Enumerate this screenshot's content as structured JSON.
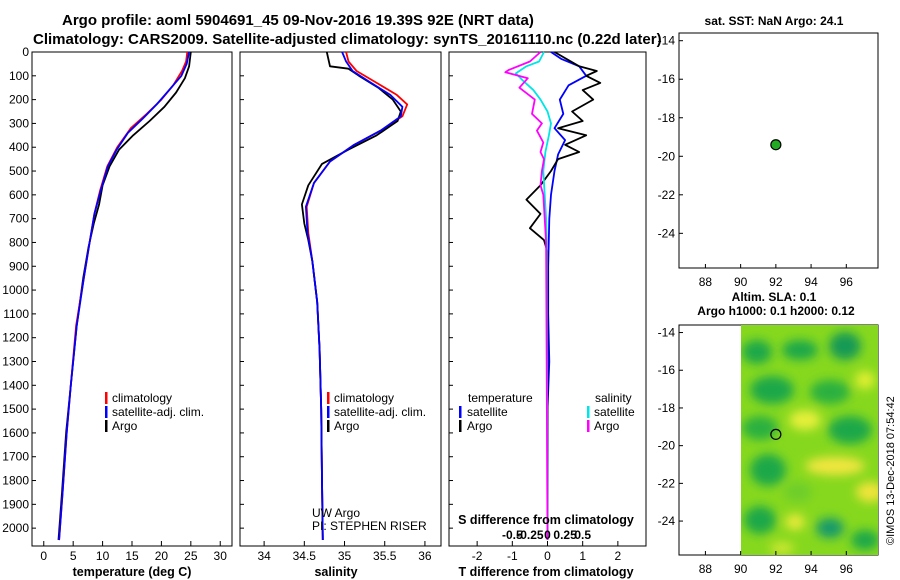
{
  "title": {
    "line1": "Argo profile: aoml 5904691_45 09-Nov-2016 19.39S 92E (NRT data)",
    "line2": "Climatology: CARS2009. Satellite-adjusted climatology: synTS_20161110.nc (0.22d later)"
  },
  "colors": {
    "climatology": "#ff0000",
    "satellite": "#0000ff",
    "argo": "#000000",
    "sat_salinity": "#00e5e5",
    "argo_salinity": "#ff00ff"
  },
  "depth_ticks": [
    "0",
    "100",
    "200",
    "300",
    "400",
    "500",
    "600",
    "700",
    "800",
    "900",
    "1000",
    "1100",
    "1200",
    "1300",
    "1400",
    "1500",
    "1600",
    "1700",
    "1800",
    "1900",
    "2000"
  ],
  "chart_data": [
    {
      "type": "line",
      "xlabel": "temperature (deg C)",
      "xlim": [
        -2,
        32
      ],
      "ylim": [
        0,
        2075
      ],
      "xticks": [
        "0",
        "5",
        "10",
        "15",
        "20",
        "25",
        "30"
      ],
      "legend": [
        "climatology",
        "satellite-adj. clim.",
        "Argo"
      ],
      "series": [
        {
          "name": "climatology",
          "points": [
            [
              24.4,
              0
            ],
            [
              24.2,
              40
            ],
            [
              23.5,
              80
            ],
            [
              22.0,
              140
            ],
            [
              20.0,
              200
            ],
            [
              17.5,
              260
            ],
            [
              14.8,
              320
            ],
            [
              12.5,
              400
            ],
            [
              10.8,
              480
            ],
            [
              9.6,
              580
            ],
            [
              8.6,
              680
            ],
            [
              7.8,
              800
            ],
            [
              6.8,
              950
            ],
            [
              5.5,
              1150
            ],
            [
              4.6,
              1400
            ],
            [
              3.9,
              1600
            ],
            [
              3.2,
              1850
            ],
            [
              2.6,
              2050
            ]
          ]
        },
        {
          "name": "satellite-adj. clim.",
          "points": [
            [
              24.7,
              0
            ],
            [
              24.3,
              50
            ],
            [
              23.4,
              100
            ],
            [
              21.3,
              160
            ],
            [
              19.2,
              220
            ],
            [
              16.8,
              280
            ],
            [
              14.3,
              340
            ],
            [
              12.4,
              410
            ],
            [
              10.9,
              480
            ],
            [
              9.7,
              580
            ],
            [
              8.6,
              680
            ],
            [
              7.8,
              800
            ],
            [
              6.8,
              950
            ],
            [
              5.6,
              1150
            ],
            [
              4.6,
              1400
            ],
            [
              3.9,
              1600
            ],
            [
              3.2,
              1850
            ],
            [
              2.6,
              2050
            ]
          ]
        },
        {
          "name": "Argo",
          "points": [
            [
              25.0,
              0
            ],
            [
              24.7,
              60
            ],
            [
              24.0,
              110
            ],
            [
              22.5,
              170
            ],
            [
              20.5,
              230
            ],
            [
              18.0,
              290
            ],
            [
              15.2,
              350
            ],
            [
              12.8,
              410
            ],
            [
              11.2,
              480
            ],
            [
              10.0,
              560
            ],
            [
              9.4,
              640
            ],
            [
              8.5,
              720
            ],
            [
              7.6,
              820
            ],
            [
              6.7,
              950
            ],
            [
              5.6,
              1150
            ],
            [
              4.6,
              1400
            ],
            [
              3.8,
              1600
            ],
            [
              3.1,
              1850
            ],
            [
              2.5,
              2050
            ]
          ]
        }
      ]
    },
    {
      "type": "line",
      "xlabel": "salinity",
      "xlim": [
        33.7,
        36.2
      ],
      "ylim": [
        0,
        2075
      ],
      "xticks": [
        "34",
        "34.5",
        "35",
        "35.5",
        "36"
      ],
      "legend": [
        "climatology",
        "satellite-adj. clim.",
        "Argo"
      ],
      "notes": [
        "UW Argo",
        "PI: STEPHEN RISER"
      ],
      "series": [
        {
          "name": "climatology",
          "points": [
            [
              35.02,
              0
            ],
            [
              35.05,
              40
            ],
            [
              35.15,
              80
            ],
            [
              35.4,
              130
            ],
            [
              35.65,
              180
            ],
            [
              35.78,
              220
            ],
            [
              35.72,
              270
            ],
            [
              35.45,
              330
            ],
            [
              35.12,
              390
            ],
            [
              34.82,
              460
            ],
            [
              34.62,
              550
            ],
            [
              34.53,
              650
            ],
            [
              34.55,
              760
            ],
            [
              34.6,
              880
            ],
            [
              34.66,
              1050
            ],
            [
              34.69,
              1250
            ],
            [
              34.71,
              1500
            ],
            [
              34.72,
              1800
            ],
            [
              34.73,
              2050
            ]
          ]
        },
        {
          "name": "satellite-adj. clim.",
          "points": [
            [
              34.97,
              0
            ],
            [
              35.02,
              40
            ],
            [
              35.1,
              80
            ],
            [
              35.33,
              130
            ],
            [
              35.57,
              180
            ],
            [
              35.72,
              230
            ],
            [
              35.7,
              270
            ],
            [
              35.45,
              330
            ],
            [
              35.12,
              390
            ],
            [
              34.82,
              460
            ],
            [
              34.62,
              550
            ],
            [
              34.52,
              650
            ],
            [
              34.54,
              760
            ],
            [
              34.6,
              880
            ],
            [
              34.66,
              1050
            ],
            [
              34.69,
              1250
            ],
            [
              34.71,
              1500
            ],
            [
              34.72,
              1800
            ],
            [
              34.73,
              2050
            ]
          ]
        },
        {
          "name": "Argo",
          "points": [
            [
              34.78,
              0
            ],
            [
              34.82,
              60
            ],
            [
              35.05,
              70
            ],
            [
              35.18,
              100
            ],
            [
              35.42,
              150
            ],
            [
              35.6,
              200
            ],
            [
              35.7,
              250
            ],
            [
              35.66,
              290
            ],
            [
              35.4,
              350
            ],
            [
              35.05,
              410
            ],
            [
              34.72,
              470
            ],
            [
              34.55,
              560
            ],
            [
              34.47,
              640
            ],
            [
              34.5,
              720
            ],
            [
              34.55,
              790
            ],
            [
              34.6,
              880
            ],
            [
              34.66,
              1050
            ],
            [
              34.69,
              1250
            ],
            [
              34.71,
              1500
            ],
            [
              34.72,
              1800
            ],
            [
              34.73,
              2050
            ]
          ]
        }
      ]
    },
    {
      "type": "line",
      "xlabel": "T difference from climatology",
      "xlim": [
        -2.8,
        2.8
      ],
      "ylim": [
        0,
        2075
      ],
      "xticks": [
        "-2",
        "-1",
        "0",
        "1",
        "2"
      ],
      "top_axis_label": "S difference from climatology",
      "top_ticks": [
        "-0.5",
        "-0.25",
        "0",
        "0.25",
        "0.5"
      ],
      "legend_headers": [
        "temperature",
        "salinity"
      ],
      "legend_left": [
        "satellite",
        "Argo"
      ],
      "legend_right": [
        "satellite",
        "Argo"
      ],
      "series": [
        {
          "name": "T satellite",
          "points": [
            [
              0.1,
              0
            ],
            [
              0.4,
              30
            ],
            [
              0.9,
              60
            ],
            [
              1.1,
              100
            ],
            [
              0.6,
              140
            ],
            [
              0.35,
              200
            ],
            [
              0.45,
              260
            ],
            [
              0.2,
              320
            ],
            [
              0.5,
              370
            ],
            [
              0.3,
              430
            ],
            [
              0.2,
              500
            ],
            [
              0.1,
              600
            ],
            [
              0.05,
              700
            ],
            [
              0.02,
              900
            ],
            [
              0.02,
              1100
            ],
            [
              0.05,
              1300
            ],
            [
              0.0,
              1500
            ],
            [
              0.0,
              2050
            ]
          ]
        },
        {
          "name": "T Argo",
          "points": [
            [
              0.2,
              0
            ],
            [
              0.9,
              60
            ],
            [
              1.4,
              80
            ],
            [
              1.1,
              100
            ],
            [
              1.5,
              130
            ],
            [
              1.0,
              160
            ],
            [
              1.3,
              200
            ],
            [
              0.7,
              250
            ],
            [
              1.0,
              290
            ],
            [
              0.3,
              320
            ],
            [
              1.1,
              350
            ],
            [
              0.5,
              390
            ],
            [
              0.9,
              420
            ],
            [
              0.3,
              450
            ],
            [
              0.1,
              500
            ],
            [
              -0.2,
              560
            ],
            [
              -0.6,
              620
            ],
            [
              -0.2,
              680
            ],
            [
              -0.5,
              740
            ],
            [
              -0.1,
              790
            ],
            [
              0.0,
              840
            ],
            [
              0.0,
              2050
            ]
          ]
        },
        {
          "name": "S satellite",
          "points": [
            [
              -0.05,
              0
            ],
            [
              -0.12,
              40
            ],
            [
              -0.3,
              60
            ],
            [
              -0.45,
              90
            ],
            [
              -0.35,
              120
            ],
            [
              -0.2,
              160
            ],
            [
              -0.1,
              200
            ],
            [
              0.0,
              250
            ],
            [
              0.05,
              300
            ],
            [
              0.02,
              350
            ],
            [
              -0.03,
              420
            ],
            [
              -0.06,
              500
            ],
            [
              -0.04,
              600
            ],
            [
              -0.02,
              700
            ],
            [
              -0.01,
              800
            ],
            [
              -0.01,
              1000
            ],
            [
              0.0,
              2050
            ]
          ]
        },
        {
          "name": "S Argo",
          "points": [
            [
              -0.1,
              0
            ],
            [
              -0.25,
              40
            ],
            [
              -0.55,
              75
            ],
            [
              -0.6,
              85
            ],
            [
              -0.28,
              110
            ],
            [
              -0.4,
              150
            ],
            [
              -0.18,
              200
            ],
            [
              -0.22,
              260
            ],
            [
              -0.08,
              300
            ],
            [
              -0.15,
              330
            ],
            [
              -0.06,
              380
            ],
            [
              -0.1,
              420
            ],
            [
              -0.05,
              450
            ],
            [
              -0.08,
              500
            ],
            [
              -0.1,
              560
            ],
            [
              -0.06,
              600
            ],
            [
              -0.04,
              700
            ],
            [
              -0.02,
              800
            ],
            [
              0.0,
              2050
            ]
          ]
        }
      ]
    },
    {
      "type": "scatter",
      "title": "sat. SST: NaN Argo: 24.1",
      "xlim": [
        86.5,
        97.8
      ],
      "ylim": [
        -25.8,
        -13.6
      ],
      "xticks": [
        "88",
        "90",
        "92",
        "94",
        "96"
      ],
      "yticks": [
        "-14",
        "-16",
        "-18",
        "-20",
        "-22",
        "-24"
      ],
      "points": [
        {
          "x": 92.0,
          "y": -19.4
        }
      ]
    },
    {
      "type": "heatmap",
      "title": "Altim. SLA: 0.1",
      "subtitle": "Argo h1000: 0.1 h2000: 0.12",
      "xlim": [
        86.5,
        97.8
      ],
      "ylim": [
        -25.8,
        -13.6
      ],
      "xticks": [
        "88",
        "90",
        "92",
        "94",
        "96"
      ],
      "yticks": [
        "-14",
        "-16",
        "-18",
        "-20",
        "-22",
        "-24"
      ],
      "points": [
        {
          "x": 92.0,
          "y": -19.4
        }
      ]
    }
  ],
  "credit": "©IMOS 13-Dec-2018 07:54:42"
}
